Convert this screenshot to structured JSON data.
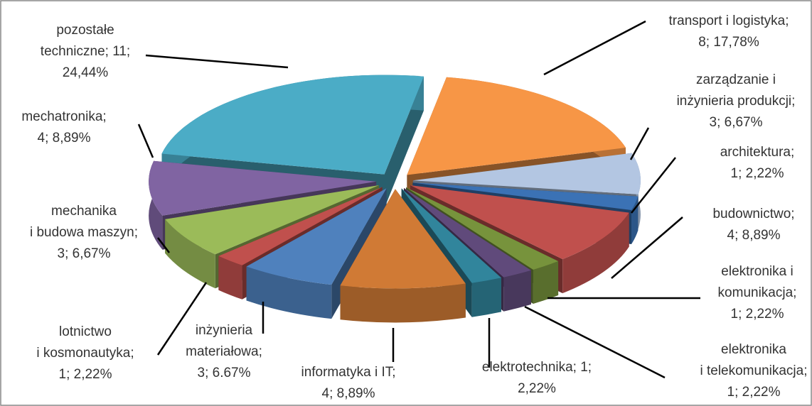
{
  "chart_data": {
    "type": "pie3d",
    "labels": [
      [
        "transport i logistyka;",
        "8; 17,78%"
      ],
      [
        "zarządzanie i",
        "inżynieria produkcji;",
        "3; 6,67%"
      ],
      [
        "architektura;",
        "1; 2,22%"
      ],
      [
        "budownictwo;",
        "4; 8,89%"
      ],
      [
        "elektronika i",
        "komunikacja;",
        "1; 2,22%"
      ],
      [
        "elektronika",
        "i telekomunikacja;",
        "1; 2,22%"
      ],
      [
        "elektrotechnika; 1;",
        "2,22%"
      ],
      [
        "informatyka i IT;",
        "4; 8,89%"
      ],
      [
        "inżynieria",
        "materiałowa;",
        "3; 6.67%"
      ],
      [
        "lotnictwo",
        "i kosmonautyka;",
        "1; 2,22%"
      ],
      [
        "mechanika",
        "i budowa maszyn;",
        "3; 6,67%"
      ],
      [
        "mechatronika;",
        "4; 8,89%"
      ],
      [
        "pozostałe",
        "techniczne; 11;",
        "24,44%"
      ]
    ],
    "values": [
      8,
      3,
      1,
      4,
      1,
      1,
      1,
      4,
      3,
      1,
      3,
      4,
      11
    ],
    "colors": [
      "#f79646",
      "#b3c6e2",
      "#3b72b5",
      "#c0504d",
      "#77933c",
      "#604a7b",
      "#31859c",
      "#d07a35",
      "#4f81bd",
      "#c0504d",
      "#9bbb59",
      "#8064a2",
      "#4bacc6"
    ]
  }
}
